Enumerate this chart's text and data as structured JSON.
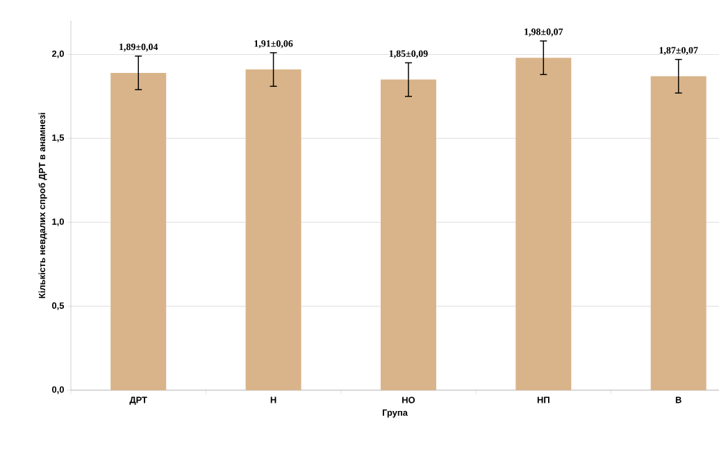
{
  "chart_data": {
    "type": "bar",
    "xlabel": "Група",
    "ylabel": "Кількість невдалих спроб ДРТ в анамнезі",
    "categories": [
      "ДРТ",
      "Н",
      "НО",
      "НП",
      "В"
    ],
    "values": [
      1.89,
      1.91,
      1.85,
      1.98,
      1.87
    ],
    "errors": [
      0.1,
      0.1,
      0.1,
      0.1,
      0.1
    ],
    "value_labels": [
      "1,89±0,04",
      "1,91±0,06",
      "1,85±0,09",
      "1,98±0,07",
      "1,87±0,07"
    ],
    "color": "#d9b48a",
    "ylim": [
      0,
      2.2
    ],
    "yticks": [
      {
        "value": 0,
        "label": "0,0"
      },
      {
        "value": 0.5,
        "label": "0,5"
      },
      {
        "value": 1,
        "label": "1,0"
      },
      {
        "value": 1.5,
        "label": "1,5"
      },
      {
        "value": 2,
        "label": "2,0"
      }
    ],
    "grid": "y"
  }
}
